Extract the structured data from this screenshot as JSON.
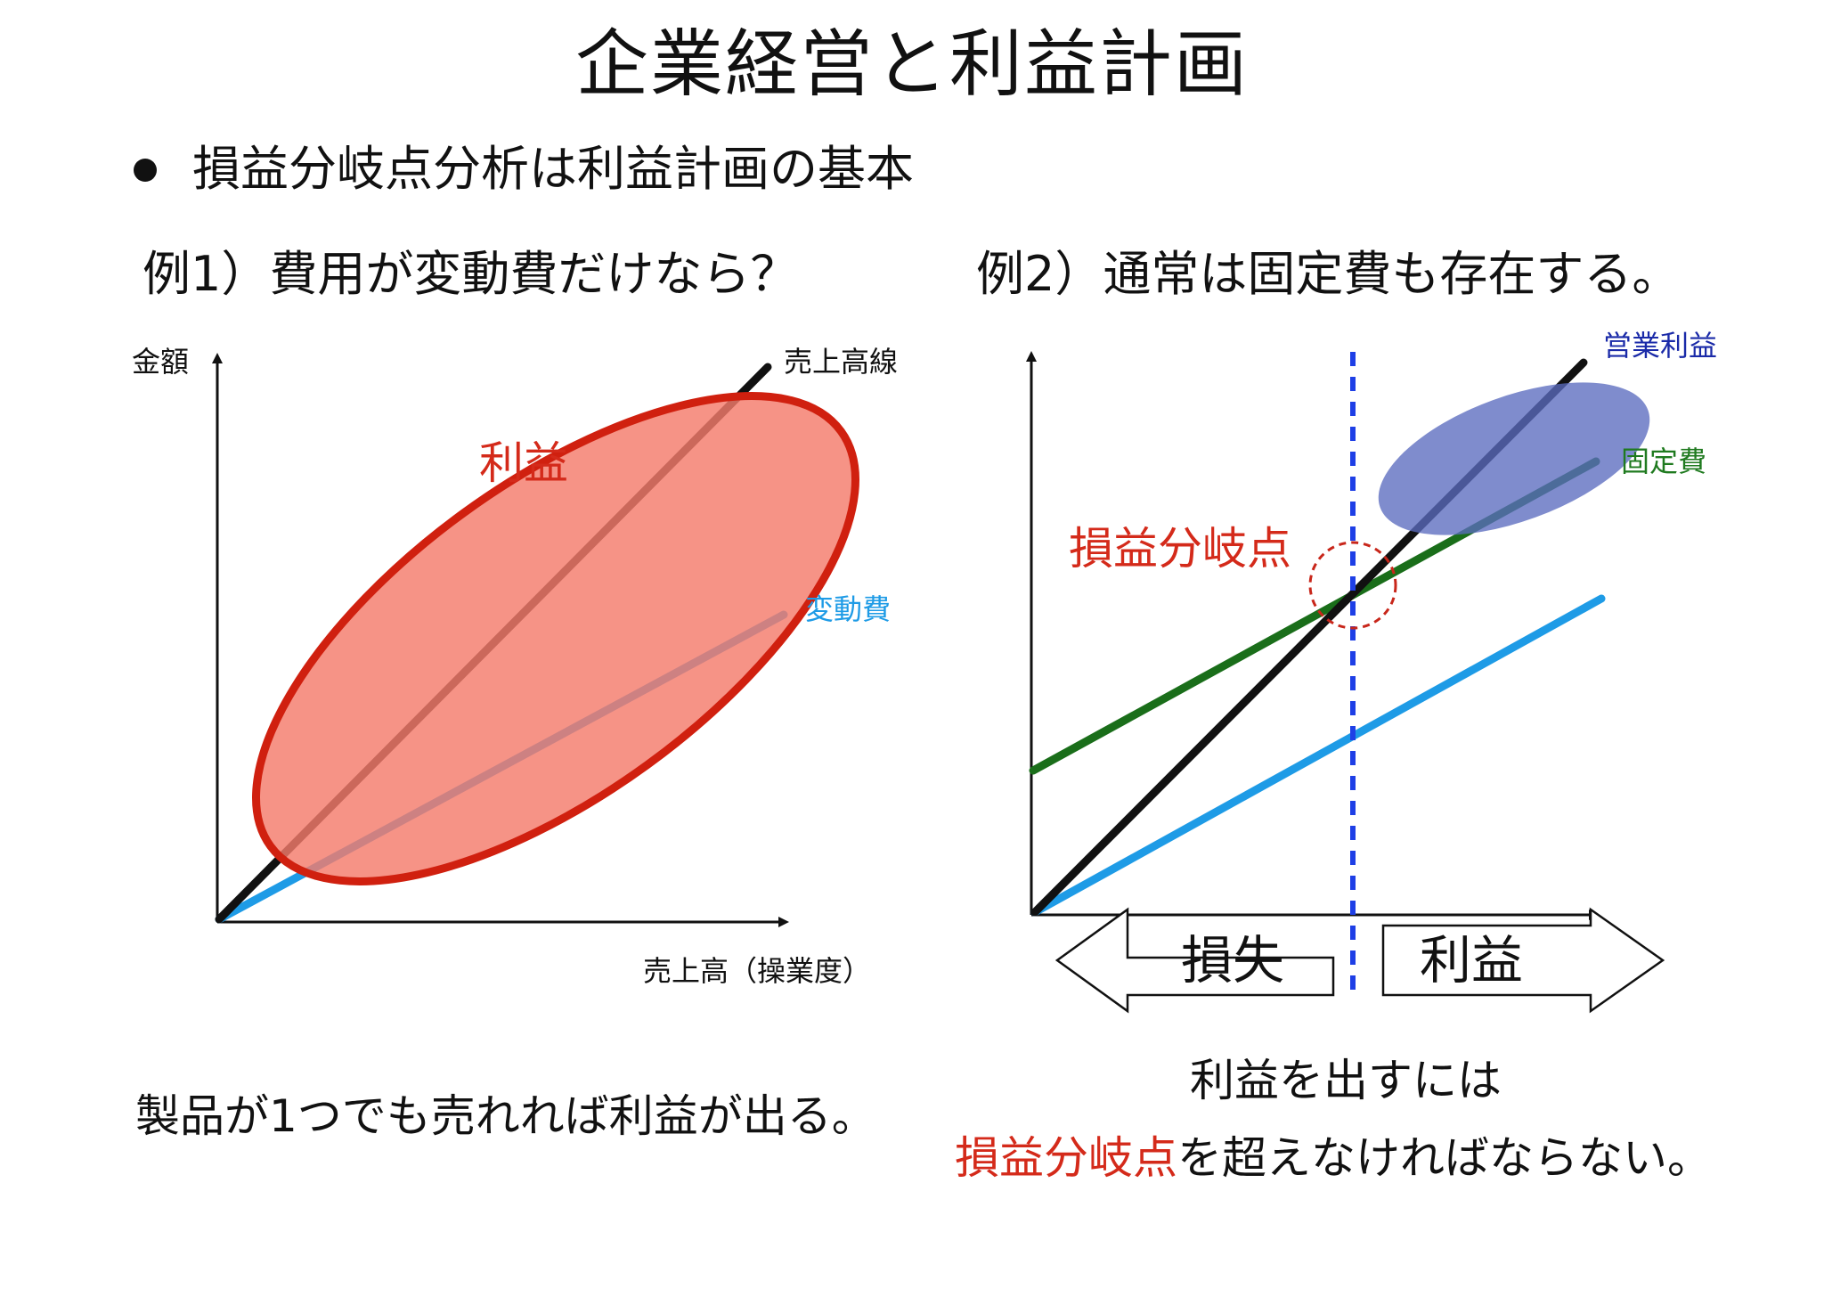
{
  "title": "企業経営と利益計画",
  "bullet": "損益分岐点分析は利益計画の基本",
  "example1": {
    "heading": "例1）費用が変動費だけなら？",
    "y_axis_label": "金額",
    "x_axis_label": "売上高（操業度）",
    "sales_line_label": "売上高線",
    "variable_cost_label": "変動費",
    "profit_label": "利益",
    "caption": "製品が1つでも売れれば利益が出る。"
  },
  "example2": {
    "heading": "例2）通常は固定費も存在する。",
    "operating_profit_label": "営業利益",
    "fixed_cost_label": "固定費",
    "break_even_label": "損益分岐点",
    "loss_label": "損失",
    "profit_label": "利益",
    "caption_line1": "利益を出すには",
    "caption_highlight": "損益分岐点",
    "caption_rest": "を超えなければならない。"
  },
  "colors": {
    "text": "#111111",
    "red_label": "#d42a1a",
    "profit_fill": "#f47b6b",
    "profit_stroke": "#d0200f",
    "sales_line": "#111111",
    "variable_cost_line": "#1e9be6",
    "fixed_cost_line": "#1a6e1a",
    "fixed_cost_label": "#1f7a1f",
    "operating_profit_fill": "#5b6bbf",
    "operating_profit_label": "#1a2aa8",
    "break_even_vline": "#1e3fe6",
    "break_even_circle": "#c8261a"
  },
  "icons": {
    "loss_arrow": "left-arrow-outline-icon",
    "profit_arrow": "right-arrow-outline-icon",
    "bullet": "bullet-dot-icon"
  }
}
